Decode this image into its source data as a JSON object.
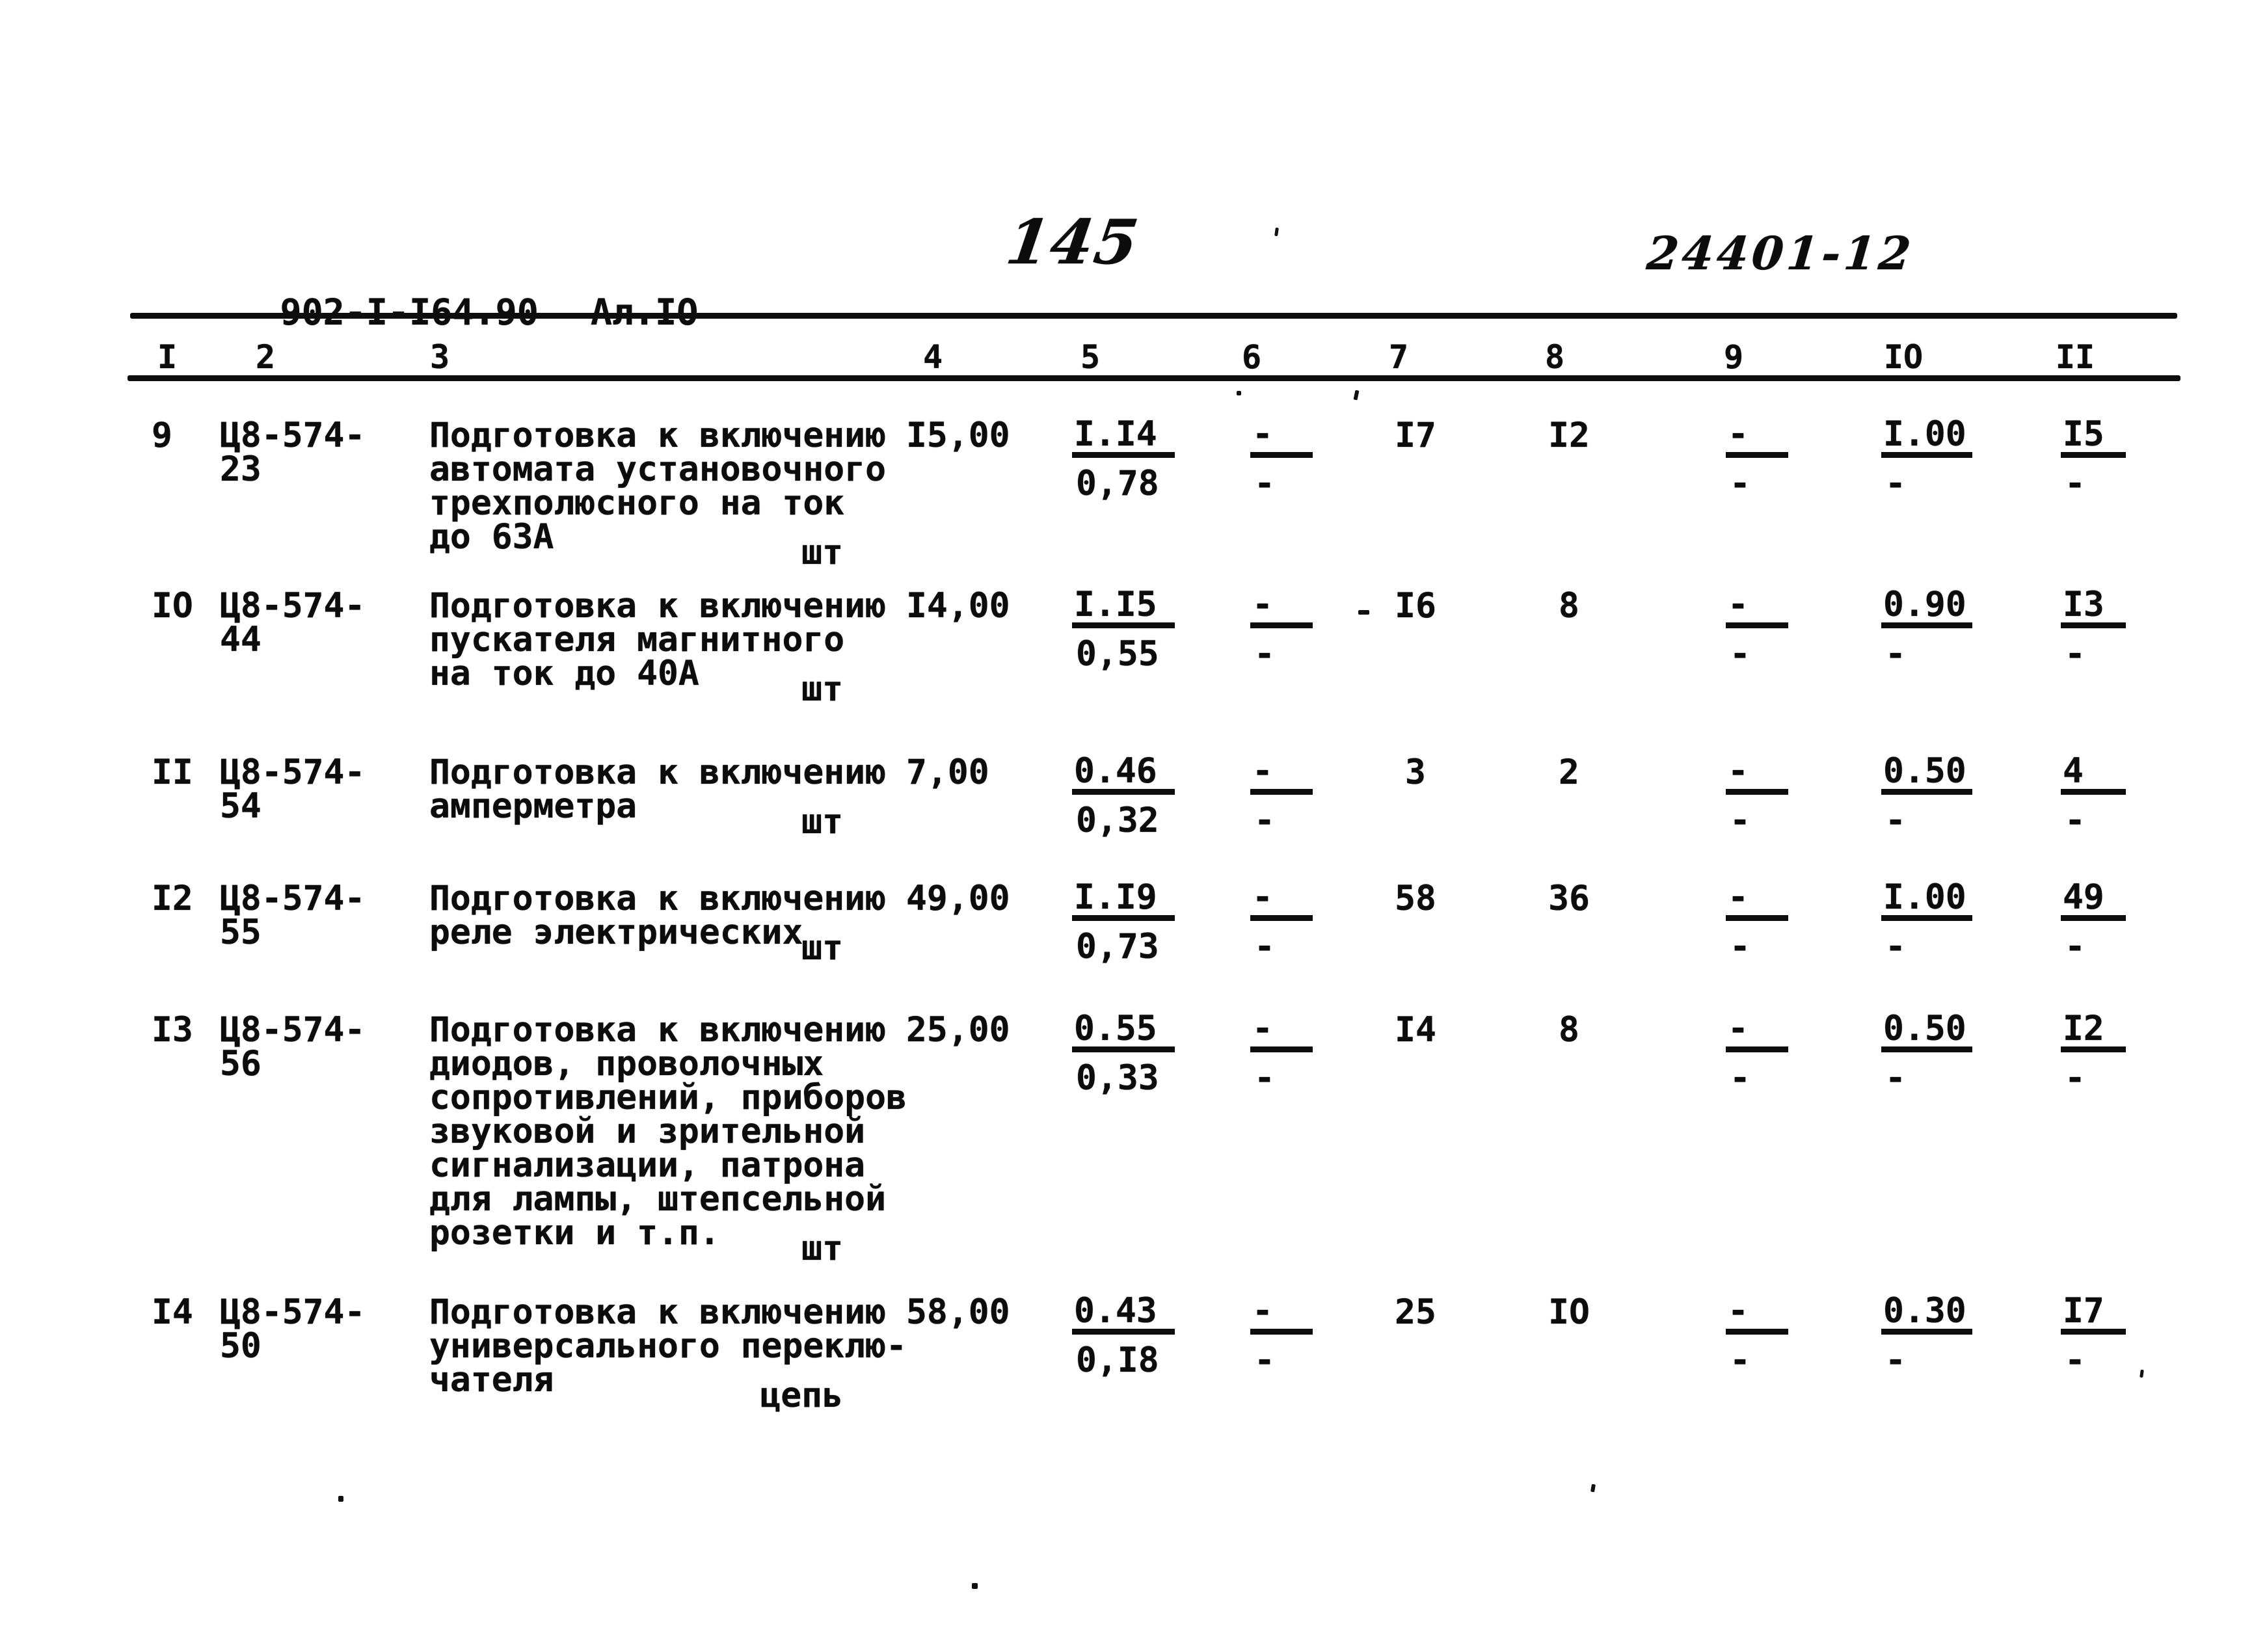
{
  "header": {
    "doc_number": "902-I-I64.90",
    "album": "Ал.IO",
    "page_number": "145",
    "stamp_number": "24401-12"
  },
  "table": {
    "column_headers": [
      "I",
      "2",
      "3",
      "4",
      "5",
      "6",
      "7",
      "8",
      "9",
      "IO",
      "II"
    ],
    "rows": [
      {
        "num": "9",
        "code_line1": "Ц8-574-",
        "code_line2": "23",
        "desc_lines": [
          "Подготовка к включению",
          "автомата установочного",
          "трехполюсного на ток",
          "до 63А"
        ],
        "unit": "шт",
        "col4": "I5,00",
        "col5": {
          "num": "I.I4",
          "den": "0,78"
        },
        "col6": {
          "num": "-",
          "den": "-"
        },
        "col7": "I7",
        "col8": "I2",
        "col9": {
          "num": "-",
          "den": "-"
        },
        "col10": {
          "num": "I.00",
          "den": "-"
        },
        "col11": {
          "num": "I5",
          "den": "-"
        }
      },
      {
        "num": "IO",
        "code_line1": "Ц8-574-",
        "code_line2": "44",
        "desc_lines": [
          "Подготовка к включению",
          "пускателя магнитного",
          "на ток до 40А"
        ],
        "unit": "шт",
        "col4": "I4,00",
        "col5": {
          "num": "I.I5",
          "den": "0,55"
        },
        "col6": {
          "num": "-",
          "den": "-"
        },
        "col7": "I6",
        "col8": "8",
        "col9": {
          "num": "-",
          "den": "-"
        },
        "col10": {
          "num": "0.90",
          "den": "-"
        },
        "col11": {
          "num": "I3",
          "den": "-"
        }
      },
      {
        "num": "II",
        "code_line1": "Ц8-574-",
        "code_line2": "54",
        "desc_lines": [
          "Подготовка к включению",
          "амперметра"
        ],
        "unit": "шт",
        "col4": "7,00",
        "col5": {
          "num": "0.46",
          "den": "0,32"
        },
        "col6": {
          "num": "-",
          "den": "-"
        },
        "col7": "3",
        "col8": "2",
        "col9": {
          "num": "-",
          "den": "-"
        },
        "col10": {
          "num": "0.50",
          "den": "-"
        },
        "col11": {
          "num": "4",
          "den": "-"
        }
      },
      {
        "num": "I2",
        "code_line1": "Ц8-574-",
        "code_line2": "55",
        "desc_lines": [
          "Подготовка к включению",
          "реле электрических"
        ],
        "unit": "шт",
        "col4": "49,00",
        "col5": {
          "num": "I.I9",
          "den": "0,73"
        },
        "col6": {
          "num": "-",
          "den": "-"
        },
        "col7": "58",
        "col8": "36",
        "col9": {
          "num": "-",
          "den": "-"
        },
        "col10": {
          "num": "I.00",
          "den": "-"
        },
        "col11": {
          "num": "49",
          "den": "-"
        }
      },
      {
        "num": "I3",
        "code_line1": "Ц8-574-",
        "code_line2": "56",
        "desc_lines": [
          "Подготовка к включению",
          "диодов, проволочных",
          "сопротивлений, приборов",
          "звуковой и зрительной",
          "сигнализации, патрона",
          "для лампы, штепсельной",
          "розетки и т.п."
        ],
        "unit": "шт",
        "col4": "25,00",
        "col5": {
          "num": "0.55",
          "den": "0,33"
        },
        "col6": {
          "num": "-",
          "den": "-"
        },
        "col7": "I4",
        "col8": "8",
        "col9": {
          "num": "-",
          "den": "-"
        },
        "col10": {
          "num": "0.50",
          "den": "-"
        },
        "col11": {
          "num": "I2",
          "den": "-"
        }
      },
      {
        "num": "I4",
        "code_line1": "Ц8-574-",
        "code_line2": "50",
        "desc_lines": [
          "Подготовка к включению",
          "универсального переклю-",
          "чателя"
        ],
        "unit": "цепь",
        "col4": "58,00",
        "col5": {
          "num": "0.43",
          "den": "0,I8"
        },
        "col6": {
          "num": "-",
          "den": "-"
        },
        "col7": "25",
        "col8": "IO",
        "col9": {
          "num": "-",
          "den": "-"
        },
        "col10": {
          "num": "0.30",
          "den": "-"
        },
        "col11": {
          "num": "I7",
          "den": "-"
        }
      }
    ]
  }
}
